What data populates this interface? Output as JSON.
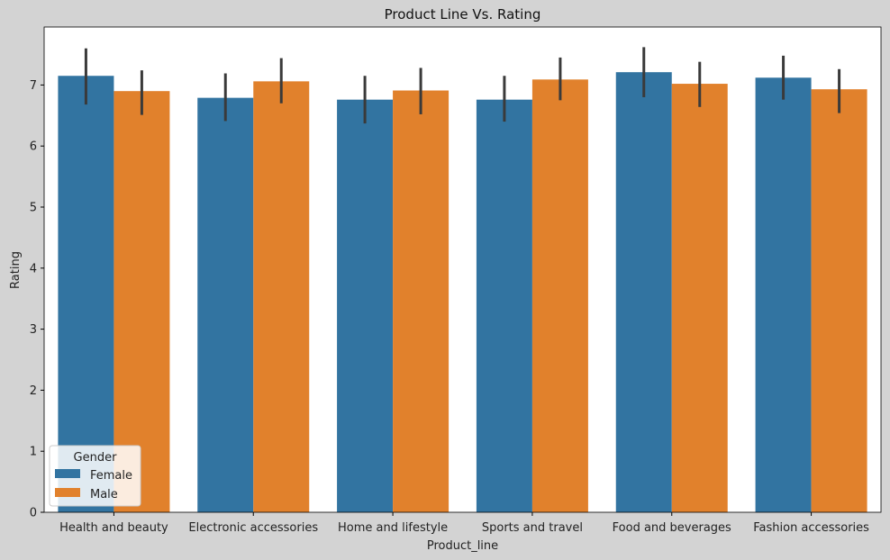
{
  "chart_data": {
    "type": "bar",
    "title": "Product Line Vs. Rating",
    "xlabel": "Product_line",
    "ylabel": "Rating",
    "ylim": [
      0,
      7.95
    ],
    "yticks": [
      0,
      1,
      2,
      3,
      4,
      5,
      6,
      7
    ],
    "grid": false,
    "categories": [
      "Health and beauty",
      "Electronic accessories",
      "Home and lifestyle",
      "Sports and travel",
      "Food and beverages",
      "Fashion accessories"
    ],
    "series": [
      {
        "name": "Female",
        "color": "#3274a1",
        "values": [
          7.15,
          6.79,
          6.76,
          6.76,
          7.21,
          7.12
        ],
        "ci_low": [
          6.68,
          6.41,
          6.37,
          6.4,
          6.8,
          6.76
        ],
        "ci_high": [
          7.6,
          7.19,
          7.15,
          7.15,
          7.62,
          7.48
        ]
      },
      {
        "name": "Male",
        "color": "#e1812c",
        "values": [
          6.9,
          7.06,
          6.91,
          7.09,
          7.02,
          6.93
        ],
        "ci_low": [
          6.51,
          6.7,
          6.52,
          6.75,
          6.64,
          6.54
        ],
        "ci_high": [
          7.24,
          7.44,
          7.28,
          7.45,
          7.38,
          7.26
        ]
      }
    ],
    "legend": {
      "title": "Gender",
      "placement": "lower-left"
    },
    "errorbar_color": "#3a3a3a"
  }
}
